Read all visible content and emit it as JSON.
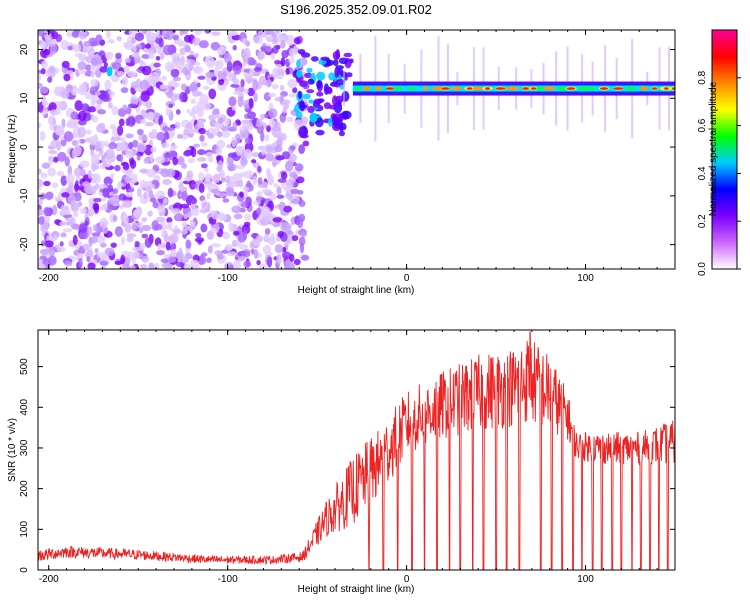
{
  "figure": {
    "title": "S196.2025.352.09.01.R02"
  },
  "chart_data": [
    {
      "type": "heatmap",
      "name": "spectrogram",
      "xlabel": "Height of straight line (km)",
      "ylabel": "Frequency (Hz)",
      "xlim": [
        -206,
        150
      ],
      "ylim": [
        -25,
        24
      ],
      "xticks": [
        {
          "value": -200,
          "label": "-200"
        },
        {
          "value": -100,
          "label": "-100"
        },
        {
          "value": 0,
          "label": "0"
        },
        {
          "value": 100,
          "label": "100"
        }
      ],
      "yticks": [
        {
          "value": 20,
          "label": "20"
        },
        {
          "value": 10,
          "label": "10"
        },
        {
          "value": 0,
          "label": "0"
        },
        {
          "value": -10,
          "label": "-10"
        },
        {
          "value": -20,
          "label": "-20"
        }
      ],
      "colorbar": {
        "label": "Normalized spectral amplitude",
        "range": [
          0,
          1
        ],
        "ticks": [
          {
            "value": 0.0,
            "label": "0.0"
          },
          {
            "value": 0.2,
            "label": "0.2"
          },
          {
            "value": 0.4,
            "label": "0.4"
          },
          {
            "value": 0.6,
            "label": "0.6"
          },
          {
            "value": 0.8,
            "label": "0.8"
          }
        ],
        "colormap": [
          "#ffffff",
          "#cc66ff",
          "#7a00ff",
          "#0000ff",
          "#00ccff",
          "#00ff00",
          "#ffff00",
          "#ff8800",
          "#ff0000",
          "#ff0099"
        ]
      },
      "features": {
        "signal_band_frequency_hz": 12,
        "signal_band_start_km": -30,
        "noise_region_end_km": -58,
        "transition_region_km": [
          -62,
          -30
        ]
      }
    },
    {
      "type": "line",
      "name": "snr",
      "xlabel": "Height of straight line (km)",
      "ylabel": "SNR (10 * v/v)",
      "xlim": [
        -206,
        150
      ],
      "ylim": [
        0,
        590
      ],
      "xticks": [
        {
          "value": -200,
          "label": "-200"
        },
        {
          "value": -100,
          "label": "-100"
        },
        {
          "value": 0,
          "label": "0"
        },
        {
          "value": 100,
          "label": "100"
        }
      ],
      "yticks": [
        {
          "value": 0,
          "label": "0"
        },
        {
          "value": 100,
          "label": "100"
        },
        {
          "value": 200,
          "label": "200"
        },
        {
          "value": 300,
          "label": "300"
        },
        {
          "value": 400,
          "label": "400"
        },
        {
          "value": 500,
          "label": "500"
        }
      ],
      "color": "#ee2222",
      "envelope": [
        {
          "x": -206,
          "base": 20,
          "spread": 30
        },
        {
          "x": -190,
          "base": 30,
          "spread": 30
        },
        {
          "x": -150,
          "base": 25,
          "spread": 25
        },
        {
          "x": -110,
          "base": 15,
          "spread": 20
        },
        {
          "x": -75,
          "base": 15,
          "spread": 20
        },
        {
          "x": -58,
          "base": 20,
          "spread": 25
        },
        {
          "x": -45,
          "base": 80,
          "spread": 90
        },
        {
          "x": -30,
          "base": 110,
          "spread": 170
        },
        {
          "x": -15,
          "base": 180,
          "spread": 170
        },
        {
          "x": 0,
          "base": 280,
          "spread": 160
        },
        {
          "x": 20,
          "base": 320,
          "spread": 170
        },
        {
          "x": 40,
          "base": 340,
          "spread": 190
        },
        {
          "x": 60,
          "base": 350,
          "spread": 200
        },
        {
          "x": 68,
          "base": 360,
          "spread": 220
        },
        {
          "x": 80,
          "base": 340,
          "spread": 190
        },
        {
          "x": 90,
          "base": 320,
          "spread": 120
        },
        {
          "x": 95,
          "base": 270,
          "spread": 70
        },
        {
          "x": 110,
          "base": 260,
          "spread": 80
        },
        {
          "x": 130,
          "base": 260,
          "spread": 80
        },
        {
          "x": 150,
          "base": 260,
          "spread": 110
        }
      ],
      "dropouts_km": [
        -21,
        -13,
        -5,
        3,
        10,
        17,
        24,
        30,
        37,
        43,
        50,
        56,
        63,
        69,
        75,
        81,
        87,
        93,
        98,
        104,
        109,
        115,
        120,
        126,
        131,
        136,
        141,
        146
      ],
      "peak": {
        "x": 69,
        "y": 585
      }
    }
  ]
}
